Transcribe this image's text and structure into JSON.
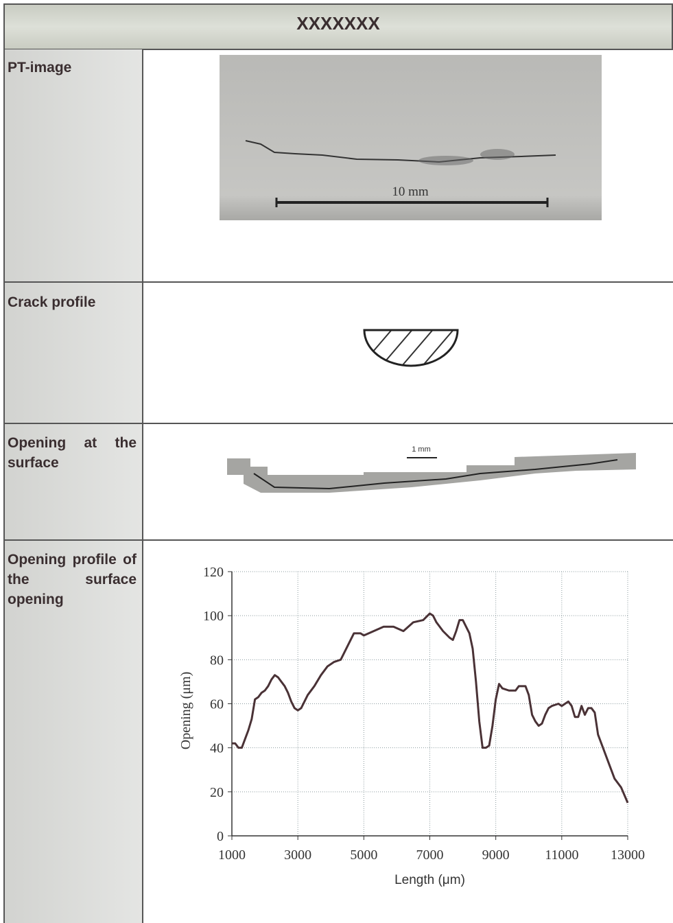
{
  "header": {
    "title": "XXXXXXX"
  },
  "rows": [
    {
      "label": "PT-image",
      "scale_label": "10 mm"
    },
    {
      "label": "Crack profile"
    },
    {
      "label": "Opening at the surface",
      "scale_label": "1 mm"
    },
    {
      "label": "Opening profile of the surface opening"
    }
  ],
  "chart_data": {
    "type": "line",
    "xlabel": "Length (μm)",
    "ylabel": "Opening (μm)",
    "x": [
      1000,
      1100,
      1200,
      1300,
      1400,
      1500,
      1600,
      1700,
      1800,
      1900,
      2000,
      2100,
      2200,
      2300,
      2400,
      2500,
      2600,
      2700,
      2800,
      2900,
      3000,
      3100,
      3200,
      3300,
      3500,
      3700,
      3900,
      4100,
      4300,
      4500,
      4700,
      4900,
      5000,
      5300,
      5600,
      5900,
      6200,
      6500,
      6800,
      7000,
      7100,
      7200,
      7400,
      7600,
      7700,
      7800,
      7900,
      8000,
      8200,
      8300,
      8400,
      8500,
      8600,
      8700,
      8800,
      8900,
      9000,
      9100,
      9200,
      9400,
      9600,
      9700,
      9900,
      10000,
      10100,
      10200,
      10300,
      10400,
      10500,
      10600,
      10700,
      10900,
      11000,
      11200,
      11300,
      11400,
      11500,
      11600,
      11700,
      11800,
      11900,
      12000,
      12100,
      12200,
      12400,
      12600,
      12800,
      13000
    ],
    "values": [
      42,
      42,
      40,
      40,
      44,
      48,
      53,
      62,
      63,
      65,
      66,
      68,
      71,
      73,
      72,
      70,
      68,
      65,
      61,
      58,
      57,
      58,
      61,
      64,
      68,
      73,
      77,
      79,
      80,
      86,
      92,
      92,
      91,
      93,
      95,
      95,
      93,
      97,
      98,
      101,
      100,
      97,
      93,
      90,
      89,
      93,
      98,
      98,
      92,
      85,
      70,
      52,
      40,
      40,
      41,
      50,
      62,
      69,
      67,
      66,
      66,
      68,
      68,
      64,
      55,
      52,
      50,
      51,
      55,
      58,
      59,
      60,
      59,
      61,
      59,
      54,
      54,
      59,
      55,
      58,
      58,
      56,
      46,
      42,
      34,
      26,
      22,
      15
    ],
    "color": "#4a3236",
    "xlim": [
      1000,
      13000
    ],
    "ylim": [
      0,
      120
    ],
    "xticks": [
      1000,
      3000,
      5000,
      7000,
      9000,
      11000,
      13000
    ],
    "yticks": [
      0,
      20,
      40,
      60,
      80,
      100,
      120
    ],
    "grid": true
  }
}
